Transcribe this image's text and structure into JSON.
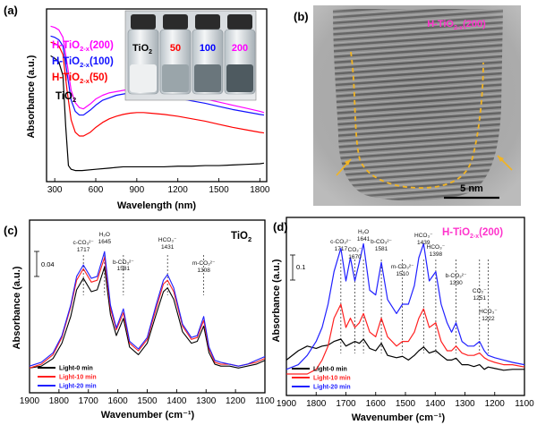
{
  "panels": {
    "a": {
      "label": "(a)",
      "xlabel": "Wavelength (nm)",
      "ylabel": "Absorbance (a.u.)",
      "xlim": [
        240,
        1850
      ],
      "xticks": [
        "300",
        "600",
        "900",
        "1200",
        "1500",
        "1800"
      ],
      "legend": [
        {
          "base": "H-TiO",
          "sub": "2-x",
          "tail": "(200)",
          "color": "#ff00ff"
        },
        {
          "base": "H-TiO",
          "sub": "2-x",
          "tail": "(100)",
          "color": "#1010ff"
        },
        {
          "base": "H-TiO",
          "sub": "2-x",
          "tail": "(50)",
          "color": "#ff0000"
        },
        {
          "base": "TiO",
          "sub": "2",
          "tail": "",
          "color": "#000000"
        }
      ],
      "inset_vials": [
        {
          "base": "TiO",
          "sub": "2",
          "color": "#000000"
        },
        {
          "base": "50",
          "sub": "",
          "color": "#ff0000"
        },
        {
          "base": "100",
          "sub": "",
          "color": "#0000ff"
        },
        {
          "base": "200",
          "sub": "",
          "color": "#ff00ff"
        }
      ]
    },
    "b": {
      "label": "(b)",
      "title_base": "H-TiO",
      "title_sub": "2-x",
      "title_tail": "(200)",
      "title_color": "#ff33cc",
      "scale_bar": "5 nm"
    },
    "c": {
      "label": "(c)",
      "title_base": "TiO",
      "title_sub": "2",
      "xlabel": "Wavenumber (cm⁻¹)",
      "ylabel": "Absorbance (a.u.)",
      "scale": "0.04",
      "xticks": [
        "1900",
        "1800",
        "1700",
        "1600",
        "1500",
        "1400",
        "1300",
        "1200",
        "1100"
      ],
      "annotations": [
        {
          "text": "c-CO₃²⁻",
          "value": "1717"
        },
        {
          "text": "H₂O",
          "value": "1645"
        },
        {
          "text": "b-CO₃²⁻",
          "value": "1581"
        },
        {
          "text": "HCO₃⁻",
          "value": "1431"
        },
        {
          "text": "m-CO₃²⁻",
          "value": "1308"
        }
      ],
      "legend": [
        {
          "label": "Light-0 min",
          "color": "#000000"
        },
        {
          "label": "Light-10 min",
          "color": "#ff2020"
        },
        {
          "label": "Light-20 min",
          "color": "#2020ff"
        }
      ]
    },
    "d": {
      "label": "(d)",
      "title_base": "H-TiO",
      "title_sub": "2-x",
      "title_tail": "(200)",
      "title_color": "#ff33cc",
      "xlabel": "Wavenumber (cm⁻¹)",
      "ylabel": "Absorbance (a.u.)",
      "scale": "0.1",
      "xticks": [
        "1900",
        "1800",
        "1700",
        "1600",
        "1500",
        "1400",
        "1300",
        "1200",
        "1100"
      ],
      "annotations": [
        {
          "text": "c-CO₃²⁻",
          "value": "1717"
        },
        {
          "text": "CO₂⁻",
          "value": "1670"
        },
        {
          "text": "H₂O",
          "value": "1641"
        },
        {
          "text": "b-CO₃²⁻",
          "value": "1581"
        },
        {
          "text": "m-CO₃²⁻",
          "value": "1510"
        },
        {
          "text": "HCO₃⁻",
          "value": "1439"
        },
        {
          "text": "HCO₃⁻",
          "value": "1398"
        },
        {
          "text": "b-CO₃²⁻",
          "value": "1330"
        },
        {
          "text": "CO₂⁻",
          "value": "1251"
        },
        {
          "text": "HCO₃⁻",
          "value": "1222"
        }
      ],
      "legend": [
        {
          "label": "Light-0 min",
          "color": "#000000"
        },
        {
          "label": "Light-10 min",
          "color": "#ff2020"
        },
        {
          "label": "Light-20 min",
          "color": "#2020ff"
        }
      ]
    }
  },
  "chart_data": [
    {
      "type": "line",
      "title": "",
      "xlabel": "Wavelength (nm)",
      "ylabel": "Absorbance (a.u.)",
      "xlim": [
        240,
        1850
      ],
      "series": [
        {
          "name": "H-TiO2-x(200)",
          "color": "#ff00ff",
          "x": [
            270,
            300,
            330,
            360,
            390,
            420,
            450,
            480,
            510,
            560,
            600,
            650,
            700,
            750,
            800,
            850,
            900,
            950,
            1000,
            1100,
            1200,
            1300,
            1400,
            1500,
            1600,
            1700,
            1800,
            1830
          ],
          "y": [
            1.26,
            1.25,
            1.23,
            1.17,
            0.96,
            0.74,
            0.64,
            0.6,
            0.59,
            0.63,
            0.67,
            0.7,
            0.72,
            0.73,
            0.74,
            0.75,
            0.75,
            0.75,
            0.745,
            0.73,
            0.715,
            0.695,
            0.67,
            0.645,
            0.62,
            0.595,
            0.57,
            0.56
          ]
        },
        {
          "name": "H-TiO2-x(100)",
          "color": "#1010ff",
          "x": [
            270,
            300,
            330,
            360,
            390,
            420,
            450,
            480,
            510,
            560,
            600,
            650,
            700,
            750,
            800,
            850,
            900,
            950,
            1000,
            1100,
            1200,
            1300,
            1400,
            1500,
            1600,
            1700,
            1800,
            1830
          ],
          "y": [
            1.18,
            1.17,
            1.15,
            1.1,
            0.88,
            0.66,
            0.57,
            0.54,
            0.54,
            0.58,
            0.62,
            0.66,
            0.68,
            0.7,
            0.71,
            0.72,
            0.72,
            0.715,
            0.71,
            0.695,
            0.675,
            0.655,
            0.635,
            0.61,
            0.585,
            0.565,
            0.545,
            0.54
          ]
        },
        {
          "name": "H-TiO2-x(50)",
          "color": "#ff0000",
          "x": [
            270,
            300,
            330,
            360,
            390,
            420,
            450,
            480,
            510,
            560,
            600,
            650,
            700,
            750,
            800,
            850,
            900,
            950,
            1000,
            1100,
            1200,
            1300,
            1400,
            1500,
            1600,
            1700,
            1800,
            1830
          ],
          "y": [
            1.13,
            1.12,
            1.1,
            1.03,
            0.74,
            0.5,
            0.4,
            0.37,
            0.37,
            0.4,
            0.44,
            0.48,
            0.51,
            0.53,
            0.545,
            0.555,
            0.56,
            0.56,
            0.555,
            0.545,
            0.53,
            0.51,
            0.49,
            0.465,
            0.44,
            0.42,
            0.4,
            0.395
          ]
        },
        {
          "name": "TiO2",
          "color": "#000000",
          "x": [
            270,
            300,
            330,
            360,
            380,
            400,
            420,
            450,
            500,
            600,
            700,
            800,
            900,
            1000,
            1100,
            1200,
            1300,
            1400,
            1500,
            1600,
            1700,
            1800,
            1830
          ],
          "y": [
            1.02,
            1.0,
            0.97,
            0.86,
            0.45,
            0.13,
            0.1,
            0.09,
            0.09,
            0.1,
            0.11,
            0.12,
            0.12,
            0.12,
            0.12,
            0.125,
            0.125,
            0.13,
            0.13,
            0.135,
            0.14,
            0.145,
            0.15
          ]
        }
      ]
    },
    {
      "type": "line",
      "title": "",
      "xlabel": "Wavenumber (cm⁻¹)",
      "ylabel": "Absorbance (a.u.)",
      "xlim": [
        1900,
        1100
      ],
      "series": [
        {
          "name": "Light-0 min",
          "color": "#000000",
          "x": [
            1900,
            1860,
            1820,
            1790,
            1760,
            1740,
            1717,
            1690,
            1670,
            1645,
            1625,
            1605,
            1581,
            1560,
            1530,
            1500,
            1470,
            1445,
            1431,
            1410,
            1380,
            1350,
            1330,
            1308,
            1290,
            1270,
            1250,
            1220,
            1190,
            1160,
            1130,
            1100
          ],
          "y": [
            0.005,
            0.006,
            0.01,
            0.018,
            0.032,
            0.046,
            0.052,
            0.045,
            0.046,
            0.058,
            0.033,
            0.022,
            0.031,
            0.016,
            0.012,
            0.018,
            0.033,
            0.045,
            0.047,
            0.041,
            0.024,
            0.018,
            0.019,
            0.027,
            0.013,
            0.007,
            0.006,
            0.006,
            0.005,
            0.006,
            0.007,
            0.009
          ]
        },
        {
          "name": "Light-10 min",
          "color": "#ff2020",
          "x": [
            1900,
            1860,
            1820,
            1790,
            1760,
            1740,
            1717,
            1690,
            1670,
            1645,
            1625,
            1605,
            1581,
            1560,
            1530,
            1500,
            1470,
            1445,
            1431,
            1410,
            1380,
            1350,
            1330,
            1308,
            1290,
            1270,
            1250,
            1220,
            1190,
            1160,
            1130,
            1100
          ],
          "y": [
            0.005,
            0.007,
            0.012,
            0.021,
            0.037,
            0.051,
            0.057,
            0.05,
            0.051,
            0.063,
            0.036,
            0.025,
            0.034,
            0.018,
            0.014,
            0.02,
            0.036,
            0.049,
            0.051,
            0.045,
            0.027,
            0.02,
            0.021,
            0.03,
            0.015,
            0.008,
            0.007,
            0.007,
            0.006,
            0.007,
            0.008,
            0.01
          ]
        },
        {
          "name": "Light-20 min",
          "color": "#2020ff",
          "x": [
            1900,
            1860,
            1820,
            1790,
            1760,
            1740,
            1717,
            1690,
            1670,
            1645,
            1625,
            1605,
            1581,
            1560,
            1530,
            1500,
            1470,
            1445,
            1431,
            1410,
            1380,
            1350,
            1330,
            1308,
            1290,
            1270,
            1250,
            1220,
            1190,
            1160,
            1130,
            1100
          ],
          "y": [
            0.006,
            0.008,
            0.013,
            0.022,
            0.038,
            0.053,
            0.059,
            0.052,
            0.053,
            0.066,
            0.038,
            0.026,
            0.036,
            0.019,
            0.015,
            0.021,
            0.038,
            0.051,
            0.054,
            0.047,
            0.028,
            0.021,
            0.022,
            0.032,
            0.016,
            0.009,
            0.008,
            0.007,
            0.006,
            0.007,
            0.009,
            0.011
          ]
        }
      ]
    },
    {
      "type": "line",
      "title": "",
      "xlabel": "Wavenumber (cm⁻¹)",
      "ylabel": "Absorbance (a.u.)",
      "xlim": [
        1900,
        1100
      ],
      "series": [
        {
          "name": "Light-0 min",
          "color": "#000000",
          "x": [
            1900,
            1860,
            1830,
            1800,
            1780,
            1760,
            1740,
            1717,
            1700,
            1685,
            1670,
            1655,
            1641,
            1620,
            1600,
            1581,
            1560,
            1530,
            1510,
            1490,
            1470,
            1455,
            1439,
            1420,
            1398,
            1380,
            1360,
            1345,
            1330,
            1310,
            1290,
            1270,
            1251,
            1235,
            1222,
            1200,
            1170,
            1140,
            1100
          ],
          "y": [
            0.03,
            0.05,
            0.06,
            0.055,
            0.06,
            0.062,
            0.07,
            0.075,
            0.06,
            0.065,
            0.07,
            0.066,
            0.075,
            0.055,
            0.05,
            0.066,
            0.04,
            0.035,
            0.038,
            0.03,
            0.04,
            0.05,
            0.058,
            0.045,
            0.05,
            0.04,
            0.03,
            0.03,
            0.034,
            0.02,
            0.02,
            0.016,
            0.02,
            0.01,
            0.015,
            0.012,
            0.008,
            0.01,
            0.01
          ]
        },
        {
          "name": "Light-10 min",
          "color": "#ff2020",
          "x": [
            1900,
            1860,
            1830,
            1800,
            1780,
            1760,
            1740,
            1717,
            1700,
            1685,
            1670,
            1655,
            1641,
            1620,
            1600,
            1581,
            1560,
            1530,
            1510,
            1490,
            1470,
            1455,
            1439,
            1420,
            1398,
            1380,
            1360,
            1345,
            1330,
            1310,
            1290,
            1270,
            1251,
            1235,
            1222,
            1200,
            1170,
            1140,
            1100
          ],
          "y": [
            0.0,
            0.0,
            0.0,
            0.01,
            0.03,
            0.06,
            0.12,
            0.15,
            0.1,
            0.12,
            0.1,
            0.11,
            0.13,
            0.09,
            0.08,
            0.12,
            0.08,
            0.06,
            0.07,
            0.07,
            0.09,
            0.12,
            0.14,
            0.1,
            0.11,
            0.07,
            0.05,
            0.05,
            0.06,
            0.045,
            0.04,
            0.04,
            0.045,
            0.035,
            0.03,
            0.025,
            0.02,
            0.02,
            0.015
          ]
        },
        {
          "name": "Light-20 min",
          "color": "#2020ff",
          "x": [
            1900,
            1860,
            1830,
            1800,
            1780,
            1760,
            1740,
            1717,
            1700,
            1685,
            1670,
            1655,
            1641,
            1620,
            1600,
            1581,
            1560,
            1530,
            1510,
            1490,
            1470,
            1455,
            1439,
            1420,
            1398,
            1380,
            1360,
            1345,
            1330,
            1310,
            1290,
            1270,
            1251,
            1235,
            1222,
            1200,
            1170,
            1140,
            1100
          ],
          "y": [
            0.01,
            0.02,
            0.04,
            0.07,
            0.1,
            0.15,
            0.22,
            0.27,
            0.2,
            0.25,
            0.2,
            0.24,
            0.28,
            0.18,
            0.17,
            0.24,
            0.16,
            0.13,
            0.15,
            0.15,
            0.19,
            0.25,
            0.28,
            0.2,
            0.22,
            0.15,
            0.11,
            0.09,
            0.11,
            0.07,
            0.06,
            0.06,
            0.07,
            0.05,
            0.04,
            0.035,
            0.03,
            0.025,
            0.02
          ]
        }
      ]
    }
  ]
}
